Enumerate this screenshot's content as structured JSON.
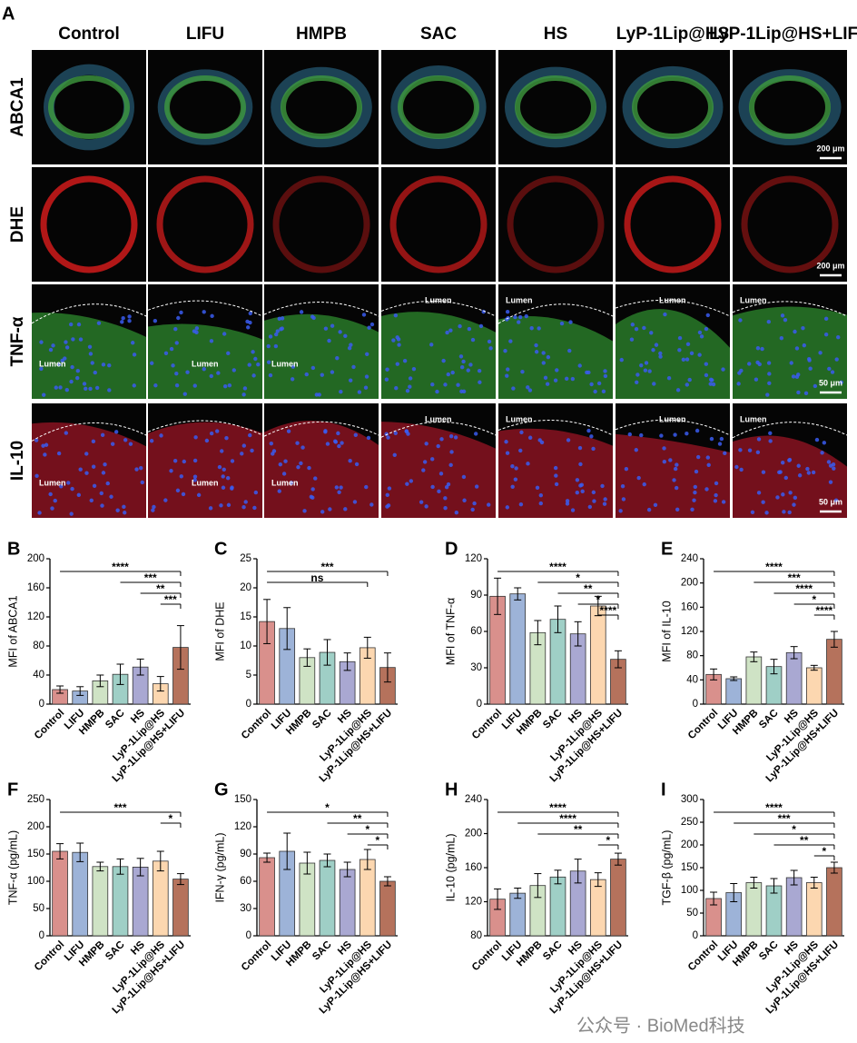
{
  "panel_a": {
    "label": "A",
    "columns": [
      "Control",
      "LIFU",
      "HMPB",
      "SAC",
      "HS",
      "LyP-1Lip@HS",
      "LyP-1Lip@HS+LIFU"
    ],
    "rows": [
      "ABCA1",
      "DHE",
      "TNF-α",
      "IL-10"
    ],
    "scale_bars": [
      "200 μm",
      "200 μm",
      "50 μm",
      "50 μm"
    ],
    "lumen": "Lumen"
  },
  "watermark": "公众号 · BioMed科技",
  "chart_data": [
    {
      "type": "bar",
      "panel": "B",
      "y_label": "MFI of ABCA1",
      "categories": [
        "Control",
        "LIFU",
        "HMPB",
        "SAC",
        "HS",
        "LyP-1Lip@HS",
        "LyP-1Lip@HS+LIFU"
      ],
      "values": [
        20,
        18,
        32,
        41,
        51,
        28,
        78
      ],
      "errors": [
        5,
        6,
        8,
        14,
        11,
        10,
        30
      ],
      "colors": [
        "#d9908c",
        "#9db3d8",
        "#cfe3c5",
        "#9fcfc6",
        "#a9a8d2",
        "#fcd7b0",
        "#b5725c"
      ],
      "ylim": [
        0,
        200
      ],
      "yticks": [
        0,
        40,
        80,
        120,
        160,
        200
      ],
      "comparisons": [
        {
          "label": "****",
          "groups": [
            "Control",
            "LyP-1Lip@HS+LIFU"
          ]
        },
        {
          "label": "***",
          "groups": [
            "SAC",
            "LyP-1Lip@HS+LIFU"
          ]
        },
        {
          "label": "**",
          "groups": [
            "HS",
            "LyP-1Lip@HS+LIFU"
          ]
        },
        {
          "label": "***",
          "groups": [
            "LyP-1Lip@HS",
            "LyP-1Lip@HS+LIFU"
          ]
        }
      ]
    },
    {
      "type": "bar",
      "panel": "C",
      "y_label": "MFI of DHE",
      "categories": [
        "Control",
        "LIFU",
        "HMPB",
        "SAC",
        "HS",
        "LyP-1Lip@HS",
        "LyP-1Lip@HS+LIFU"
      ],
      "values": [
        14.2,
        13,
        8,
        8.9,
        7.3,
        9.7,
        6.3
      ],
      "errors": [
        3.8,
        3.6,
        1.5,
        2.2,
        1.5,
        1.8,
        2.5
      ],
      "colors": [
        "#d9908c",
        "#9db3d8",
        "#cfe3c5",
        "#9fcfc6",
        "#a9a8d2",
        "#fcd7b0",
        "#b5725c"
      ],
      "ylim": [
        0,
        25
      ],
      "yticks": [
        0,
        5,
        10,
        15,
        20,
        25
      ],
      "comparisons": [
        {
          "label": "***",
          "groups": [
            "Control",
            "LyP-1Lip@HS+LIFU"
          ]
        },
        {
          "label": "ns",
          "groups": [
            "Control",
            "LyP-1Lip@HS"
          ]
        }
      ]
    },
    {
      "type": "bar",
      "panel": "D",
      "y_label": "MFI of TNF-α",
      "categories": [
        "Control",
        "LIFU",
        "HMPB",
        "SAC",
        "HS",
        "LyP-1Lip@HS",
        "LyP-1Lip@HS+LIFU"
      ],
      "values": [
        89,
        91,
        59,
        70,
        58,
        81,
        37
      ],
      "errors": [
        15,
        5,
        10,
        11,
        10,
        8,
        7
      ],
      "colors": [
        "#d9908c",
        "#9db3d8",
        "#cfe3c5",
        "#9fcfc6",
        "#a9a8d2",
        "#fcd7b0",
        "#b5725c"
      ],
      "ylim": [
        0,
        120
      ],
      "yticks": [
        0,
        30,
        60,
        90,
        120
      ],
      "comparisons": [
        {
          "label": "****",
          "groups": [
            "Control",
            "LyP-1Lip@HS+LIFU"
          ]
        },
        {
          "label": "*",
          "groups": [
            "HMPB",
            "LyP-1Lip@HS+LIFU"
          ]
        },
        {
          "label": "**",
          "groups": [
            "SAC",
            "LyP-1Lip@HS+LIFU"
          ]
        },
        {
          "label": "*",
          "groups": [
            "HS",
            "LyP-1Lip@HS+LIFU"
          ]
        },
        {
          "label": "****",
          "groups": [
            "LyP-1Lip@HS",
            "LyP-1Lip@HS+LIFU"
          ]
        }
      ]
    },
    {
      "type": "bar",
      "panel": "E",
      "y_label": "MFI of IL-10",
      "categories": [
        "Control",
        "LIFU",
        "HMPB",
        "SAC",
        "HS",
        "LyP-1Lip@HS",
        "LyP-1Lip@HS+LIFU"
      ],
      "values": [
        49,
        42,
        78,
        62,
        85,
        60,
        107
      ],
      "errors": [
        9,
        3,
        8,
        12,
        10,
        4,
        13
      ],
      "colors": [
        "#d9908c",
        "#9db3d8",
        "#cfe3c5",
        "#9fcfc6",
        "#a9a8d2",
        "#fcd7b0",
        "#b5725c"
      ],
      "ylim": [
        0,
        240
      ],
      "yticks": [
        0,
        40,
        80,
        120,
        160,
        200,
        240
      ],
      "comparisons": [
        {
          "label": "****",
          "groups": [
            "Control",
            "LyP-1Lip@HS+LIFU"
          ]
        },
        {
          "label": "***",
          "groups": [
            "HMPB",
            "LyP-1Lip@HS+LIFU"
          ]
        },
        {
          "label": "****",
          "groups": [
            "SAC",
            "LyP-1Lip@HS+LIFU"
          ]
        },
        {
          "label": "*",
          "groups": [
            "HS",
            "LyP-1Lip@HS+LIFU"
          ]
        },
        {
          "label": "****",
          "groups": [
            "LyP-1Lip@HS",
            "LyP-1Lip@HS+LIFU"
          ]
        }
      ]
    },
    {
      "type": "bar",
      "panel": "F",
      "y_label": "TNF-α (pg/mL)",
      "categories": [
        "Control",
        "LIFU",
        "HMPB",
        "SAC",
        "HS",
        "LyP-1Lip@HS",
        "LyP-1Lip@HS+LIFU"
      ],
      "values": [
        155,
        153,
        127,
        127,
        126,
        137,
        104
      ],
      "errors": [
        14,
        17,
        8,
        14,
        16,
        18,
        10
      ],
      "colors": [
        "#d9908c",
        "#9db3d8",
        "#cfe3c5",
        "#9fcfc6",
        "#a9a8d2",
        "#fcd7b0",
        "#b5725c"
      ],
      "ylim": [
        0,
        250
      ],
      "yticks": [
        0,
        50,
        100,
        150,
        200,
        250
      ],
      "comparisons": [
        {
          "label": "***",
          "groups": [
            "Control",
            "LyP-1Lip@HS+LIFU"
          ]
        },
        {
          "label": "*",
          "groups": [
            "LyP-1Lip@HS",
            "LyP-1Lip@HS+LIFU"
          ]
        }
      ]
    },
    {
      "type": "bar",
      "panel": "G",
      "y_label": "IFN-γ (pg/mL)",
      "categories": [
        "Control",
        "LIFU",
        "HMPB",
        "SAC",
        "HS",
        "LyP-1Lip@HS",
        "LyP-1Lip@HS+LIFU"
      ],
      "values": [
        86,
        93,
        80,
        83,
        73,
        84,
        60
      ],
      "errors": [
        5,
        20,
        12,
        7,
        8,
        11,
        5
      ],
      "colors": [
        "#d9908c",
        "#9db3d8",
        "#cfe3c5",
        "#9fcfc6",
        "#a9a8d2",
        "#fcd7b0",
        "#b5725c"
      ],
      "ylim": [
        0,
        150
      ],
      "yticks": [
        0,
        30,
        60,
        90,
        120,
        150
      ],
      "comparisons": [
        {
          "label": "*",
          "groups": [
            "Control",
            "LyP-1Lip@HS+LIFU"
          ]
        },
        {
          "label": "**",
          "groups": [
            "SAC",
            "LyP-1Lip@HS+LIFU"
          ]
        },
        {
          "label": "*",
          "groups": [
            "HS",
            "LyP-1Lip@HS+LIFU"
          ]
        },
        {
          "label": "*",
          "groups": [
            "LyP-1Lip@HS",
            "LyP-1Lip@HS+LIFU"
          ]
        }
      ]
    },
    {
      "type": "bar",
      "panel": "H",
      "y_label": "IL-10 (pg/mL)",
      "categories": [
        "Control",
        "LIFU",
        "HMPB",
        "SAC",
        "HS",
        "LyP-1Lip@HS",
        "LyP-1Lip@HS+LIFU"
      ],
      "values": [
        123,
        130,
        139,
        149,
        156,
        146,
        170
      ],
      "errors": [
        12,
        6,
        14,
        8,
        14,
        8,
        7
      ],
      "colors": [
        "#d9908c",
        "#9db3d8",
        "#cfe3c5",
        "#9fcfc6",
        "#a9a8d2",
        "#fcd7b0",
        "#b5725c"
      ],
      "ylim": [
        80,
        240
      ],
      "yticks": [
        80,
        120,
        160,
        200,
        240
      ],
      "comparisons": [
        {
          "label": "****",
          "groups": [
            "Control",
            "LyP-1Lip@HS+LIFU"
          ]
        },
        {
          "label": "****",
          "groups": [
            "LIFU",
            "LyP-1Lip@HS+LIFU"
          ]
        },
        {
          "label": "**",
          "groups": [
            "HMPB",
            "LyP-1Lip@HS+LIFU"
          ]
        },
        {
          "label": "*",
          "groups": [
            "LyP-1Lip@HS",
            "LyP-1Lip@HS+LIFU"
          ]
        }
      ]
    },
    {
      "type": "bar",
      "panel": "I",
      "y_label": "TGF-β (pg/mL)",
      "categories": [
        "Control",
        "LIFU",
        "HMPB",
        "SAC",
        "HS",
        "LyP-1Lip@HS",
        "LyP-1Lip@HS+LIFU"
      ],
      "values": [
        82,
        95,
        117,
        110,
        128,
        117,
        150
      ],
      "errors": [
        14,
        20,
        12,
        16,
        16,
        12,
        12
      ],
      "colors": [
        "#d9908c",
        "#9db3d8",
        "#cfe3c5",
        "#9fcfc6",
        "#a9a8d2",
        "#fcd7b0",
        "#b5725c"
      ],
      "ylim": [
        0,
        300
      ],
      "yticks": [
        0,
        50,
        100,
        150,
        200,
        250,
        300
      ],
      "comparisons": [
        {
          "label": "****",
          "groups": [
            "Control",
            "LyP-1Lip@HS+LIFU"
          ]
        },
        {
          "label": "***",
          "groups": [
            "LIFU",
            "LyP-1Lip@HS+LIFU"
          ]
        },
        {
          "label": "*",
          "groups": [
            "HMPB",
            "LyP-1Lip@HS+LIFU"
          ]
        },
        {
          "label": "**",
          "groups": [
            "SAC",
            "LyP-1Lip@HS+LIFU"
          ]
        },
        {
          "label": "*",
          "groups": [
            "LyP-1Lip@HS",
            "LyP-1Lip@HS+LIFU"
          ]
        }
      ]
    }
  ]
}
